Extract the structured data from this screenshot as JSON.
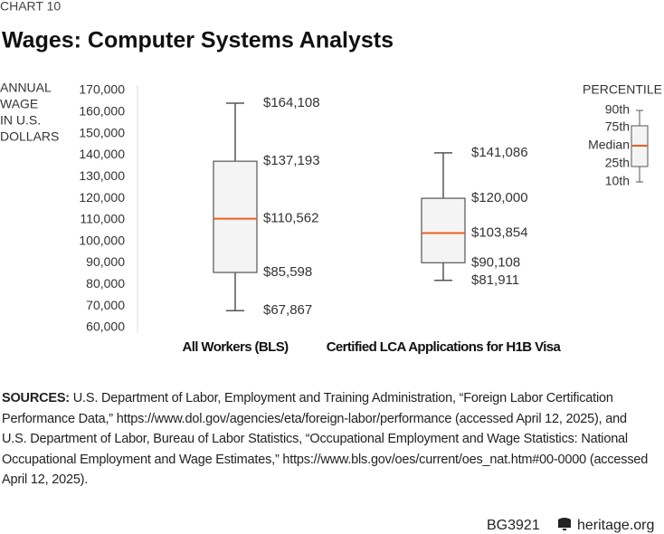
{
  "chart_data": {
    "type": "box",
    "label": "CHART 10",
    "title": "Wages: Computer Systems Analysts",
    "y_label": [
      "ANNUAL",
      "WAGE",
      "IN U.S.",
      "DOLLARS"
    ],
    "categories": [
      "All Workers (BLS)",
      "Certified LCA Applications for H1B Visa"
    ],
    "boxes": [
      {
        "p10": 67867,
        "p25": 85598,
        "median": 110562,
        "p75": 137193,
        "p90": 164108,
        "value_labels": {
          "p10": "$67,867",
          "p25": "$85,598",
          "median": "$110,562",
          "p75": "$137,193",
          "p90": "$164,108"
        }
      },
      {
        "p10": 81911,
        "p25": 90108,
        "median": 103854,
        "p75": 120000,
        "p90": 141086,
        "value_labels": {
          "p10": "$81,911",
          "p25": "$90,108",
          "median": "$103,854",
          "p75": "$120,000",
          "p90": "$141,086"
        }
      }
    ],
    "box_color": "#f4f4f4",
    "line_color": "#555555",
    "median_color": "#e8601c",
    "ylim": [
      60000,
      170000
    ],
    "yticks": [
      {
        "value": 60000,
        "label": "60,000"
      },
      {
        "value": 70000,
        "label": "70,000"
      },
      {
        "value": 80000,
        "label": "80,000"
      },
      {
        "value": 90000,
        "label": "90,000"
      },
      {
        "value": 100000,
        "label": "100,000"
      },
      {
        "value": 110000,
        "label": "110,000"
      },
      {
        "value": 120000,
        "label": "120,000"
      },
      {
        "value": 130000,
        "label": "130,000"
      },
      {
        "value": 140000,
        "label": "140,000"
      },
      {
        "value": 150000,
        "label": "150,000"
      },
      {
        "value": 160000,
        "label": "160,000"
      },
      {
        "value": 170000,
        "label": "170,000"
      }
    ],
    "grid": false,
    "legend": {
      "title": "PERCENTILE",
      "labels": [
        "90th",
        "75th",
        "Median",
        "25th",
        "10th"
      ]
    },
    "source_label": "SOURCES:",
    "source": "U.S. Department of Labor, Employment and Training Administration, “Foreign Labor Certification Performance Data,” https://www.dol.gov/agencies/eta/foreign-labor/performance (accessed April 12, 2025), and U.S. Department of Labor, Bureau of Labor Statistics, “Occupational Employment and Wage Statistics: National Occupational Employment and Wage Estimates,” https://www.bls.gov/oes/current/oes_nat.htm#00-0000 (accessed April 12, 2025).",
    "footer": {
      "code": "BG3921",
      "site": "heritage.org"
    }
  }
}
